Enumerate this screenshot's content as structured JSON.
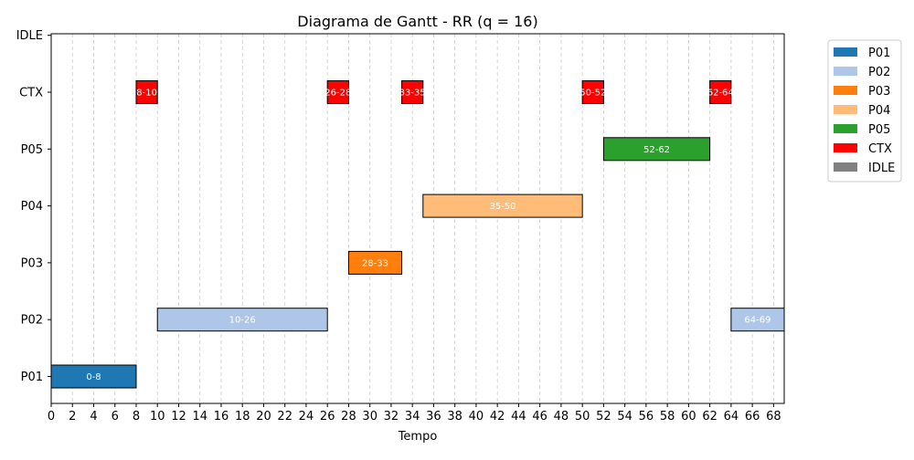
{
  "chart_data": {
    "type": "gantt",
    "title": "Diagrama de Gantt - RR (q = 16)",
    "xlabel": "Tempo",
    "ylabel": "",
    "xlim": [
      0,
      69
    ],
    "x_ticks": [
      0,
      2,
      4,
      6,
      8,
      10,
      12,
      14,
      16,
      18,
      20,
      22,
      24,
      26,
      28,
      30,
      32,
      34,
      36,
      38,
      40,
      42,
      44,
      46,
      48,
      50,
      52,
      54,
      56,
      58,
      60,
      62,
      64,
      66,
      68
    ],
    "categories": [
      "P01",
      "P02",
      "P03",
      "P04",
      "P05",
      "CTX",
      "IDLE"
    ],
    "grid": "vertical dashed",
    "legend_position": "outside-right",
    "legend": [
      {
        "name": "P01",
        "color": "#1f77b4"
      },
      {
        "name": "P02",
        "color": "#aec7e8"
      },
      {
        "name": "P03",
        "color": "#ff7f0e"
      },
      {
        "name": "P04",
        "color": "#ffbb78"
      },
      {
        "name": "P05",
        "color": "#2ca02c"
      },
      {
        "name": "CTX",
        "color": "#ff0000"
      },
      {
        "name": "IDLE",
        "color": "#808080"
      }
    ],
    "segments": [
      {
        "row": "P01",
        "start": 0,
        "end": 8,
        "label": "0-8"
      },
      {
        "row": "CTX",
        "start": 8,
        "end": 10,
        "label": "8-10"
      },
      {
        "row": "P02",
        "start": 10,
        "end": 26,
        "label": "10-26"
      },
      {
        "row": "CTX",
        "start": 26,
        "end": 28,
        "label": "26-28"
      },
      {
        "row": "P03",
        "start": 28,
        "end": 33,
        "label": "28-33"
      },
      {
        "row": "CTX",
        "start": 33,
        "end": 35,
        "label": "33-35"
      },
      {
        "row": "P04",
        "start": 35,
        "end": 50,
        "label": "35-50"
      },
      {
        "row": "CTX",
        "start": 50,
        "end": 52,
        "label": "50-52"
      },
      {
        "row": "P05",
        "start": 52,
        "end": 62,
        "label": "52-62"
      },
      {
        "row": "CTX",
        "start": 62,
        "end": 64,
        "label": "62-64"
      },
      {
        "row": "P02",
        "start": 64,
        "end": 69,
        "label": "64-69"
      }
    ]
  }
}
